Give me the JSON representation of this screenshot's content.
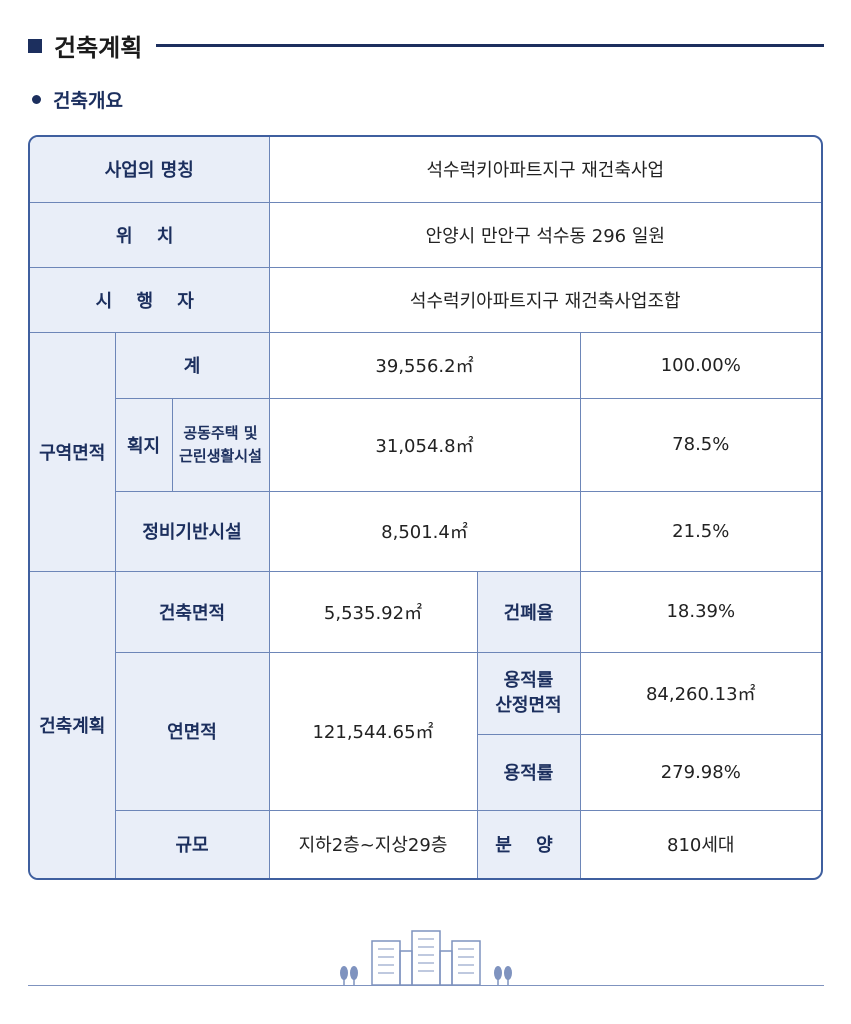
{
  "header": {
    "title": "건축계획",
    "subtitle": "건축개요"
  },
  "table": {
    "rows": [
      [
        "사업의 명칭",
        "석수럭키아파트지구 재건축사업"
      ],
      [
        "위 치",
        "안양시 만안구 석수동 296 일원"
      ],
      [
        "시 행 자",
        "석수럭키아파트지구 재건축사업조합"
      ],
      [
        "구역면적",
        "계",
        "39,556.2㎡",
        "100.00%"
      ],
      [
        "획지",
        "공동주택 및\n근린생활시설",
        "31,054.8㎡",
        "78.5%"
      ],
      [
        "정비기반시설",
        "8,501.4㎡",
        "21.5%"
      ],
      [
        "건축계획",
        "건축면적",
        "5,535.92㎡",
        "건폐율",
        "18.39%"
      ],
      [
        "연면적",
        "121,544.65㎡",
        "용적률\n산정면적",
        "84,260.13㎡"
      ],
      [
        "용적률",
        "279.98%"
      ],
      [
        "규모",
        "지하2층~지상29층",
        "분 양",
        "810세대"
      ]
    ]
  }
}
